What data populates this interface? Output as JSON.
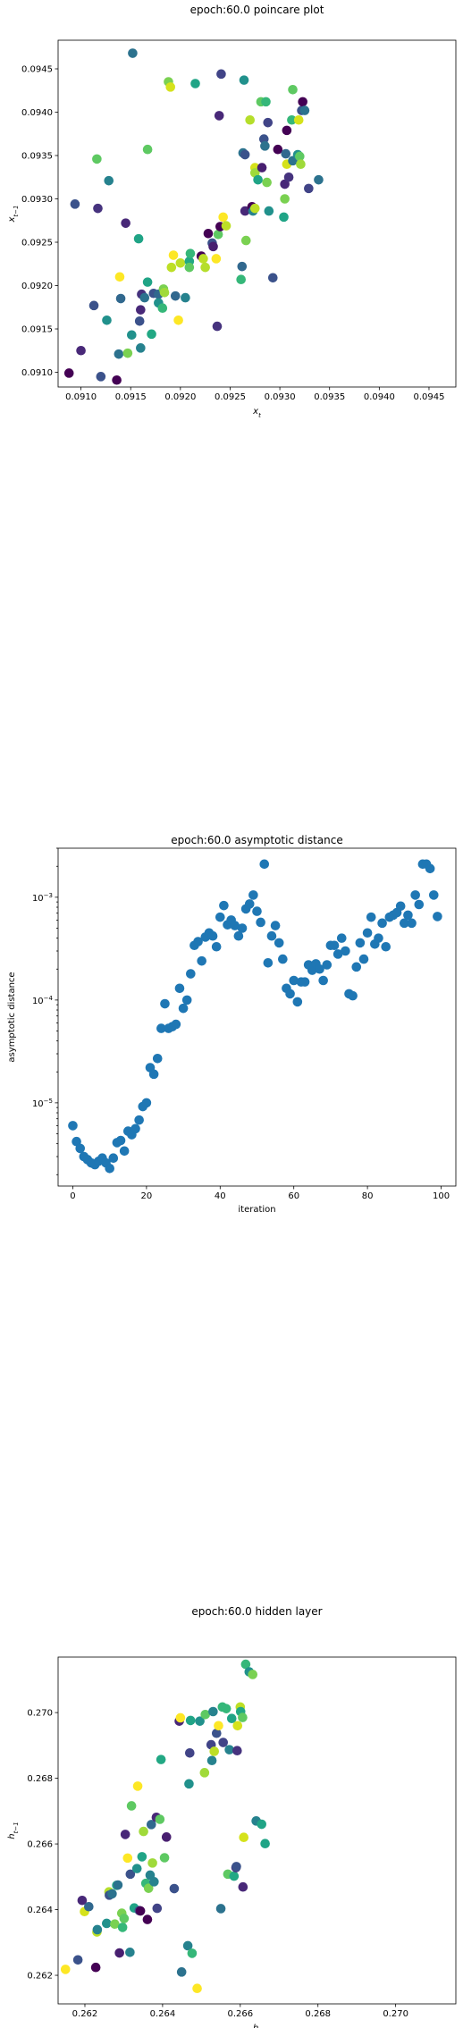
{
  "chart_data": [
    {
      "type": "scatter",
      "title": "epoch:60.0 poincare plot",
      "xlabel": "x_t",
      "ylabel": "x_{t-1}",
      "xlim": [
        0.09077,
        0.09477
      ],
      "ylim": [
        0.09083,
        0.09483
      ],
      "xticks": [
        "0.0910",
        "0.0915",
        "0.0920",
        "0.0925",
        "0.0930",
        "0.0935",
        "0.0940",
        "0.0945"
      ],
      "yticks": [
        "0.0910",
        "0.0915",
        "0.0920",
        "0.0925",
        "0.0930",
        "0.0935",
        "0.0940",
        "0.0945"
      ],
      "points": [
        [
          0.09088,
          0.09099,
          "#440154"
        ],
        [
          0.09094,
          0.09294,
          "#3b528b"
        ],
        [
          0.091,
          0.09125,
          "#482878"
        ],
        [
          0.09113,
          0.09177,
          "#3b528b"
        ],
        [
          0.09116,
          0.09346,
          "#5ec962"
        ],
        [
          0.09117,
          0.09289,
          "#46337e"
        ],
        [
          0.0912,
          0.09095,
          "#3b528b"
        ],
        [
          0.09126,
          0.0916,
          "#21918c"
        ],
        [
          0.09128,
          0.09321,
          "#26828e"
        ],
        [
          0.09136,
          0.09091,
          "#440154"
        ],
        [
          0.09138,
          0.09121,
          "#2c728e"
        ],
        [
          0.09139,
          0.0921,
          "#fde725"
        ],
        [
          0.0914,
          0.09185,
          "#31688e"
        ],
        [
          0.09145,
          0.09272,
          "#482878"
        ],
        [
          0.09147,
          0.09122,
          "#7ad151"
        ],
        [
          0.09151,
          0.09143,
          "#21918c"
        ],
        [
          0.09152,
          0.09468,
          "#2c728e"
        ],
        [
          0.09158,
          0.09254,
          "#20a486"
        ],
        [
          0.09159,
          0.09159,
          "#3b528b"
        ],
        [
          0.0916,
          0.09128,
          "#26828e"
        ],
        [
          0.0916,
          0.09172,
          "#482878"
        ],
        [
          0.09161,
          0.0919,
          "#46337e"
        ],
        [
          0.09164,
          0.09186,
          "#2c728e"
        ],
        [
          0.09167,
          0.09204,
          "#20a486"
        ],
        [
          0.09167,
          0.09357,
          "#5ec962"
        ],
        [
          0.09171,
          0.09144,
          "#22a884"
        ],
        [
          0.09173,
          0.09191,
          "#3b528b"
        ],
        [
          0.09178,
          0.0919,
          "#31688e"
        ],
        [
          0.09178,
          0.0918,
          "#21918c"
        ],
        [
          0.09182,
          0.09174,
          "#35b779"
        ],
        [
          0.09183,
          0.09196,
          "#7ad151"
        ],
        [
          0.09184,
          0.09192,
          "#a0da39"
        ],
        [
          0.09188,
          0.09435,
          "#7ad151"
        ],
        [
          0.0919,
          0.09429,
          "#d5e21b"
        ],
        [
          0.09191,
          0.09221,
          "#bddf26"
        ],
        [
          0.09193,
          0.09235,
          "#fde725"
        ],
        [
          0.09195,
          0.09188,
          "#31688e"
        ],
        [
          0.09198,
          0.0916,
          "#fde725"
        ],
        [
          0.092,
          0.09226,
          "#bddf26"
        ],
        [
          0.09205,
          0.09186,
          "#26828e"
        ],
        [
          0.09209,
          0.09228,
          "#22a884"
        ],
        [
          0.09209,
          0.09221,
          "#5ec962"
        ],
        [
          0.0921,
          0.09237,
          "#35b779"
        ],
        [
          0.09215,
          0.09433,
          "#20a486"
        ],
        [
          0.09221,
          0.09234,
          "#440154"
        ],
        [
          0.09223,
          0.09231,
          "#bddf26"
        ],
        [
          0.09225,
          0.09221,
          "#b5de2b"
        ],
        [
          0.09228,
          0.0926,
          "#440154"
        ],
        [
          0.09232,
          0.09249,
          "#3b528b"
        ],
        [
          0.09233,
          0.09245,
          "#481f70"
        ],
        [
          0.09236,
          0.09231,
          "#fde725"
        ],
        [
          0.09237,
          0.09153,
          "#46337e"
        ],
        [
          0.09238,
          0.09259,
          "#5ec962"
        ],
        [
          0.09239,
          0.09396,
          "#482878"
        ],
        [
          0.0924,
          0.09268,
          "#440154"
        ],
        [
          0.09241,
          0.09444,
          "#414487"
        ],
        [
          0.09243,
          0.09279,
          "#fde725"
        ],
        [
          0.09246,
          0.09269,
          "#bddf26"
        ],
        [
          0.09261,
          0.09207,
          "#35b779"
        ],
        [
          0.09262,
          0.09222,
          "#31688e"
        ],
        [
          0.09263,
          0.09353,
          "#2c728e"
        ],
        [
          0.09264,
          0.09437,
          "#21918c"
        ],
        [
          0.09265,
          0.09286,
          "#482878"
        ],
        [
          0.09265,
          0.09351,
          "#3b528b"
        ],
        [
          0.09266,
          0.09252,
          "#7ad151"
        ],
        [
          0.0927,
          0.09391,
          "#b5de2b"
        ],
        [
          0.09272,
          0.09291,
          "#440154"
        ],
        [
          0.09273,
          0.09286,
          "#26828e"
        ],
        [
          0.09275,
          0.09336,
          "#d5e21b"
        ],
        [
          0.09275,
          0.0933,
          "#9fda3a"
        ],
        [
          0.09275,
          0.09289,
          "#bddf26"
        ],
        [
          0.09278,
          0.09322,
          "#20a486"
        ],
        [
          0.09281,
          0.09412,
          "#5ec962"
        ],
        [
          0.09282,
          0.09336,
          "#481f70"
        ],
        [
          0.09284,
          0.09369,
          "#3b528b"
        ],
        [
          0.09285,
          0.09361,
          "#2c728e"
        ],
        [
          0.09286,
          0.09412,
          "#35b779"
        ],
        [
          0.09287,
          0.09319,
          "#7ad151"
        ],
        [
          0.09288,
          0.09388,
          "#414487"
        ],
        [
          0.09289,
          0.09286,
          "#21918c"
        ],
        [
          0.09293,
          0.09209,
          "#3b528b"
        ],
        [
          0.09298,
          0.09357,
          "#440154"
        ],
        [
          0.09304,
          0.09279,
          "#20a486"
        ],
        [
          0.09305,
          0.09317,
          "#482878"
        ],
        [
          0.09305,
          0.093,
          "#7ad151"
        ],
        [
          0.09306,
          0.09352,
          "#31688e"
        ],
        [
          0.09307,
          0.09379,
          "#440154"
        ],
        [
          0.09307,
          0.0934,
          "#d5e21b"
        ],
        [
          0.09309,
          0.09325,
          "#46337e"
        ],
        [
          0.09312,
          0.09391,
          "#35b779"
        ],
        [
          0.09313,
          0.09344,
          "#2c728e"
        ],
        [
          0.09313,
          0.09426,
          "#5ec962"
        ],
        [
          0.09318,
          0.09351,
          "#21918c"
        ],
        [
          0.09319,
          0.09391,
          "#d5e21b"
        ],
        [
          0.0932,
          0.09349,
          "#5ec962"
        ],
        [
          0.09321,
          0.0934,
          "#9fda3a"
        ],
        [
          0.09322,
          0.09402,
          "#3b528b"
        ],
        [
          0.09323,
          0.09412,
          "#440154"
        ],
        [
          0.09325,
          0.09402,
          "#2c728e"
        ],
        [
          0.09329,
          0.09312,
          "#414487"
        ],
        [
          0.09339,
          0.09322,
          "#2c728e"
        ]
      ]
    },
    {
      "type": "scatter",
      "title": "epoch:60.0 asymptotic distance",
      "xlabel": "iteration",
      "ylabel": "asymptotic distance",
      "yscale": "log",
      "xlim": [
        -4,
        104
      ],
      "ylim": [
        1.55e-06,
        0.003
      ],
      "xticks": [
        "0",
        "20",
        "40",
        "60",
        "80",
        "100"
      ],
      "yticks": [
        "10^-5",
        "10^-4",
        "10^-3"
      ],
      "color": "#1f77b4",
      "x": [
        0,
        1,
        2,
        3,
        4,
        5,
        6,
        7,
        8,
        9,
        10,
        11,
        12,
        13,
        14,
        15,
        16,
        17,
        18,
        19,
        20,
        21,
        22,
        23,
        24,
        25,
        26,
        27,
        28,
        29,
        30,
        31,
        32,
        33,
        34,
        35,
        36,
        37,
        38,
        39,
        40,
        41,
        42,
        43,
        44,
        45,
        46,
        47,
        48,
        49,
        50,
        51,
        52,
        53,
        54,
        55,
        56,
        57,
        58,
        59,
        60,
        61,
        62,
        63,
        64,
        65,
        66,
        67,
        68,
        69,
        70,
        71,
        72,
        73,
        74,
        75,
        76,
        77,
        78,
        79,
        80,
        81,
        82,
        83,
        84,
        85,
        86,
        87,
        88,
        89,
        90,
        91,
        92,
        93,
        94,
        95,
        96,
        97,
        98,
        99
      ],
      "y": [
        6e-06,
        4.2e-06,
        3.6e-06,
        3e-06,
        2.8e-06,
        2.6e-06,
        2.5e-06,
        2.7e-06,
        2.9e-06,
        2.6e-06,
        2.3e-06,
        2.9e-06,
        4.1e-06,
        4.3e-06,
        3.4e-06,
        5.3e-06,
        4.9e-06,
        5.6e-06,
        6.8e-06,
        9.2e-06,
        1e-05,
        2.2e-05,
        1.9e-05,
        2.7e-05,
        5.3e-05,
        9.2e-05,
        5.3e-05,
        5.5e-05,
        5.8e-05,
        0.00013,
        8.3e-05,
        0.0001,
        0.00018,
        0.00034,
        0.00037,
        0.00024,
        0.00041,
        0.00045,
        0.00042,
        0.00033,
        0.00064,
        0.00083,
        0.00054,
        0.0006,
        0.00053,
        0.00042,
        0.0005,
        0.00077,
        0.00086,
        0.00105,
        0.00073,
        0.00057,
        0.0021,
        0.00023,
        0.00042,
        0.00053,
        0.00036,
        0.00025,
        0.00013,
        0.000115,
        0.000155,
        9.6e-05,
        0.00015,
        0.00015,
        0.00022,
        0.000195,
        0.000225,
        0.0002,
        0.000155,
        0.00022,
        0.00034,
        0.00034,
        0.00028,
        0.0004,
        0.0003,
        0.000115,
        0.00011,
        0.00021,
        0.00036,
        0.00025,
        0.00045,
        0.00064,
        0.00035,
        0.0004,
        0.00056,
        0.00033,
        0.00064,
        0.00067,
        0.00071,
        0.00082,
        0.00056,
        0.00067,
        0.00056,
        0.00105,
        0.00085,
        0.0021,
        0.0021,
        0.0019,
        0.00105,
        0.00065
      ]
    },
    {
      "type": "scatter",
      "title": "epoch:60.0 hidden layer",
      "xlabel": "h_t",
      "ylabel": "h_{t-1}",
      "xlim": [
        0.26131,
        0.27155
      ],
      "ylim": [
        0.26113,
        0.27169
      ],
      "xticks": [
        "0.262",
        "0.264",
        "0.266",
        "0.268",
        "0.270"
      ],
      "yticks": [
        "0.262",
        "0.264",
        "0.266",
        "0.268",
        "0.270"
      ],
      "points": [
        [
          0.2615,
          0.26218,
          "#fde725"
        ],
        [
          0.26182,
          0.26247,
          "#3b528b"
        ],
        [
          0.26193,
          0.26428,
          "#482878"
        ],
        [
          0.26199,
          0.26394,
          "#d5e21b"
        ],
        [
          0.2621,
          0.26409,
          "#31688e"
        ],
        [
          0.26228,
          0.26224,
          "#440154"
        ],
        [
          0.26231,
          0.26332,
          "#bddf26"
        ],
        [
          0.26232,
          0.26339,
          "#26828e"
        ],
        [
          0.26256,
          0.26358,
          "#21918c"
        ],
        [
          0.26262,
          0.26454,
          "#b5de2b"
        ],
        [
          0.26263,
          0.26444,
          "#3b528b"
        ],
        [
          0.2627,
          0.26448,
          "#2c728e"
        ],
        [
          0.26277,
          0.26356,
          "#7ad151"
        ],
        [
          0.26282,
          0.26474,
          "#22a884"
        ],
        [
          0.26285,
          0.26475,
          "#2c728e"
        ],
        [
          0.26289,
          0.26268,
          "#481f70"
        ],
        [
          0.26295,
          0.26389,
          "#7ad151"
        ],
        [
          0.26297,
          0.26346,
          "#35b779"
        ],
        [
          0.26301,
          0.26373,
          "#5ec962"
        ],
        [
          0.26304,
          0.26629,
          "#482878"
        ],
        [
          0.2631,
          0.26557,
          "#fde725"
        ],
        [
          0.26316,
          0.2627,
          "#26828e"
        ],
        [
          0.26317,
          0.26508,
          "#3b528b"
        ],
        [
          0.2632,
          0.26716,
          "#5ec962"
        ],
        [
          0.26327,
          0.26405,
          "#20a486"
        ],
        [
          0.26334,
          0.26525,
          "#21918c"
        ],
        [
          0.26336,
          0.26776,
          "#fde725"
        ],
        [
          0.2634,
          0.26397,
          "#3b528b"
        ],
        [
          0.26343,
          0.26396,
          "#440154"
        ],
        [
          0.26347,
          0.26561,
          "#20a486"
        ],
        [
          0.26351,
          0.26638,
          "#a0da39"
        ],
        [
          0.26357,
          0.2648,
          "#35b779"
        ],
        [
          0.26361,
          0.2637,
          "#440154"
        ],
        [
          0.26364,
          0.26465,
          "#7ad151"
        ],
        [
          0.26368,
          0.26505,
          "#26828e"
        ],
        [
          0.26371,
          0.26659,
          "#31688e"
        ],
        [
          0.26374,
          0.26542,
          "#9fda3a"
        ],
        [
          0.26378,
          0.26485,
          "#26828e"
        ],
        [
          0.26384,
          0.26681,
          "#482878"
        ],
        [
          0.26386,
          0.26404,
          "#414487"
        ],
        [
          0.26393,
          0.26675,
          "#5ec962"
        ],
        [
          0.26396,
          0.26857,
          "#22a884"
        ],
        [
          0.26405,
          0.26558,
          "#5ec962"
        ],
        [
          0.2641,
          0.26621,
          "#481f70"
        ],
        [
          0.2643,
          0.26464,
          "#3b528b"
        ],
        [
          0.26443,
          0.26974,
          "#482878"
        ],
        [
          0.26446,
          0.26984,
          "#fde725"
        ],
        [
          0.26449,
          0.2621,
          "#2c728e"
        ],
        [
          0.26465,
          0.2629,
          "#26828e"
        ],
        [
          0.26468,
          0.26783,
          "#21918c"
        ],
        [
          0.2647,
          0.26877,
          "#414487"
        ],
        [
          0.26472,
          0.26976,
          "#20a486"
        ],
        [
          0.26476,
          0.26267,
          "#35b779"
        ],
        [
          0.26489,
          0.2616,
          "#fde725"
        ],
        [
          0.26496,
          0.26974,
          "#21918c"
        ],
        [
          0.26508,
          0.26817,
          "#a0da39"
        ],
        [
          0.2651,
          0.26994,
          "#5ec962"
        ],
        [
          0.26525,
          0.26902,
          "#414487"
        ],
        [
          0.26527,
          0.26854,
          "#26828e"
        ],
        [
          0.2653,
          0.27003,
          "#26828e"
        ],
        [
          0.26533,
          0.26882,
          "#bddf26"
        ],
        [
          0.26539,
          0.26937,
          "#3b528b"
        ],
        [
          0.26544,
          0.2696,
          "#fde725"
        ],
        [
          0.2655,
          0.26403,
          "#2c728e"
        ],
        [
          0.26554,
          0.27017,
          "#35b779"
        ],
        [
          0.26556,
          0.26909,
          "#414487"
        ],
        [
          0.26564,
          0.27012,
          "#35b779"
        ],
        [
          0.26568,
          0.26508,
          "#5ec962"
        ],
        [
          0.26572,
          0.26887,
          "#26828e"
        ],
        [
          0.26578,
          0.26982,
          "#20a486"
        ],
        [
          0.26584,
          0.26502,
          "#22a884"
        ],
        [
          0.26589,
          0.26528,
          "#46337e"
        ],
        [
          0.2659,
          0.26531,
          "#3b528b"
        ],
        [
          0.26592,
          0.26884,
          "#46337e"
        ],
        [
          0.26593,
          0.2696,
          "#d5e21b"
        ],
        [
          0.266,
          0.27017,
          "#bddf26"
        ],
        [
          0.26601,
          0.27003,
          "#22a884"
        ],
        [
          0.26606,
          0.26985,
          "#5ec962"
        ],
        [
          0.26607,
          0.26469,
          "#482878"
        ],
        [
          0.26609,
          0.2662,
          "#d5e21b"
        ],
        [
          0.26614,
          0.27147,
          "#35b779"
        ],
        [
          0.26623,
          0.27124,
          "#21918c"
        ],
        [
          0.26632,
          0.27116,
          "#7ad151"
        ],
        [
          0.26641,
          0.2667,
          "#26828e"
        ],
        [
          0.26655,
          0.2666,
          "#20a486"
        ],
        [
          0.26664,
          0.26601,
          "#20a486"
        ]
      ]
    }
  ]
}
